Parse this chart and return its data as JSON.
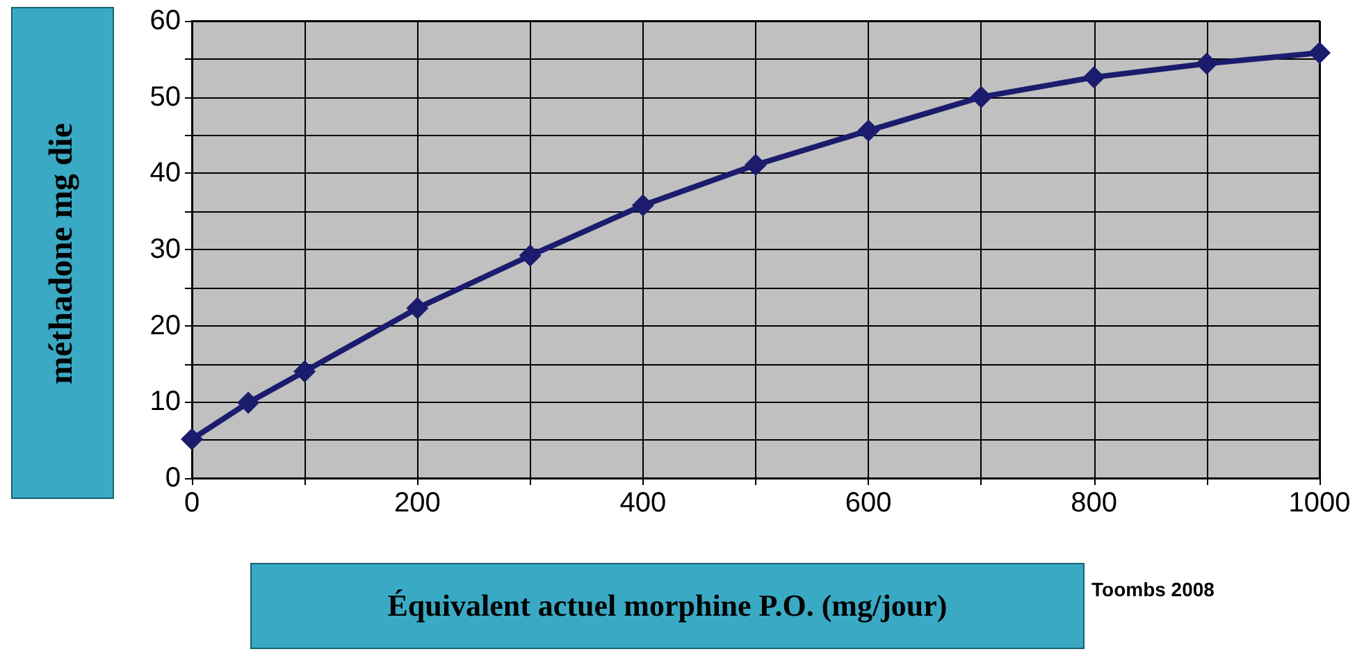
{
  "chart_data": {
    "type": "line",
    "xlabel": "Équivalent  actuel  morphine P.O. (mg/jour)",
    "ylabel": "méthadone mg die",
    "annotations": [
      "Toombs 2008"
    ],
    "x": [
      0,
      50,
      100,
      200,
      300,
      400,
      500,
      600,
      700,
      800,
      900,
      1000
    ],
    "series": [
      {
        "color": "#1c1c6e",
        "values": [
          5.1,
          9.9,
          14.0,
          22.3,
          29.2,
          35.8,
          41.1,
          45.6,
          50.0,
          52.6,
          54.4,
          55.8
        ]
      }
    ],
    "xlim": [
      0,
      1000
    ],
    "ylim": [
      0,
      60
    ],
    "xticks": [
      0,
      {
        "value": 100,
        "label": null
      },
      200,
      {
        "value": 300,
        "label": null
      },
      400,
      {
        "value": 500,
        "label": null
      },
      600,
      {
        "value": 700,
        "label": null
      },
      800,
      {
        "value": 900,
        "label": null
      },
      1000
    ],
    "yticks": [
      0,
      {
        "value": 5,
        "label": null
      },
      10,
      {
        "value": 15,
        "label": null
      },
      20,
      {
        "value": 25,
        "label": null
      },
      30,
      {
        "value": 35,
        "label": null
      },
      40,
      {
        "value": 45,
        "label": null
      },
      50,
      {
        "value": 55,
        "label": null
      },
      60
    ],
    "grid": true,
    "marker": "diamond",
    "line_style": "solid"
  }
}
